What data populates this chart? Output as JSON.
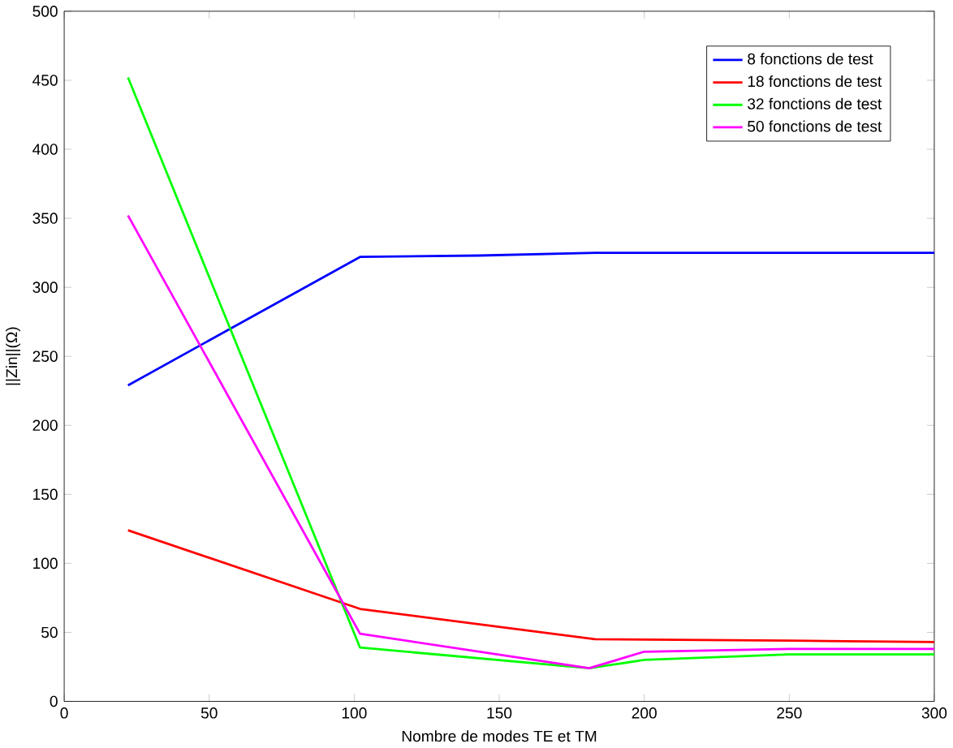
{
  "chart_data": {
    "type": "line",
    "xlabel": "Nombre de modes TE et TM",
    "ylabel": "||Zin||(Ω)",
    "xlim": [
      0,
      300
    ],
    "ylim": [
      0,
      500
    ],
    "xticks": [
      0,
      50,
      100,
      150,
      200,
      250,
      300
    ],
    "yticks": [
      0,
      50,
      100,
      150,
      200,
      250,
      300,
      350,
      400,
      450,
      500
    ],
    "legend": "top right",
    "grid": false,
    "series": [
      {
        "name": "8 fonctions de test",
        "color": "#0000ff",
        "x": [
          22,
          102,
          143,
          183,
          300
        ],
        "values": [
          229,
          322,
          323,
          325,
          325
        ]
      },
      {
        "name": "18 fonctions de test",
        "color": "#ff0000",
        "x": [
          22,
          102,
          183,
          250,
          300
        ],
        "values": [
          124,
          67,
          45,
          44,
          43
        ]
      },
      {
        "name": "32 fonctions de test",
        "color": "#00ff00",
        "x": [
          22,
          102,
          181,
          200,
          250,
          300
        ],
        "values": [
          452,
          39,
          24,
          30,
          34,
          34
        ]
      },
      {
        "name": "50 fonctions de test",
        "color": "#ff00ff",
        "x": [
          22,
          102,
          181,
          200,
          250,
          300
        ],
        "values": [
          352,
          49,
          24,
          36,
          38,
          38
        ]
      }
    ]
  }
}
